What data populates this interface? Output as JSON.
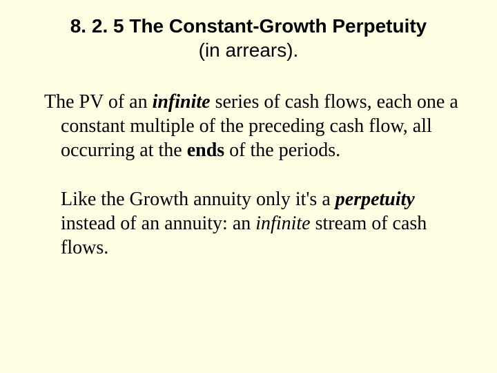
{
  "background_color": "#ffffe3",
  "text_color": "#000000",
  "title": {
    "font_family": "Arial",
    "font_size": 28,
    "bold_line": "8. 2. 5 The Constant-Growth Perpetuity",
    "regular_line": "(in arrears)."
  },
  "body": {
    "font_family": "Times New Roman",
    "font_size": 28,
    "para1": {
      "t1": "The PV of an ",
      "t2": "infinite",
      "t3": " series of cash flows, each one a constant multiple of the preceding cash flow, all occurring at the ",
      "t4": "ends",
      "t5": " of the periods."
    },
    "para2": {
      "t1": "Like the Growth annuity only it's a ",
      "t2": "perpetuity",
      "t3": " instead of an annuity: an ",
      "t4": "infinite",
      "t5": " stream of cash flows."
    }
  }
}
